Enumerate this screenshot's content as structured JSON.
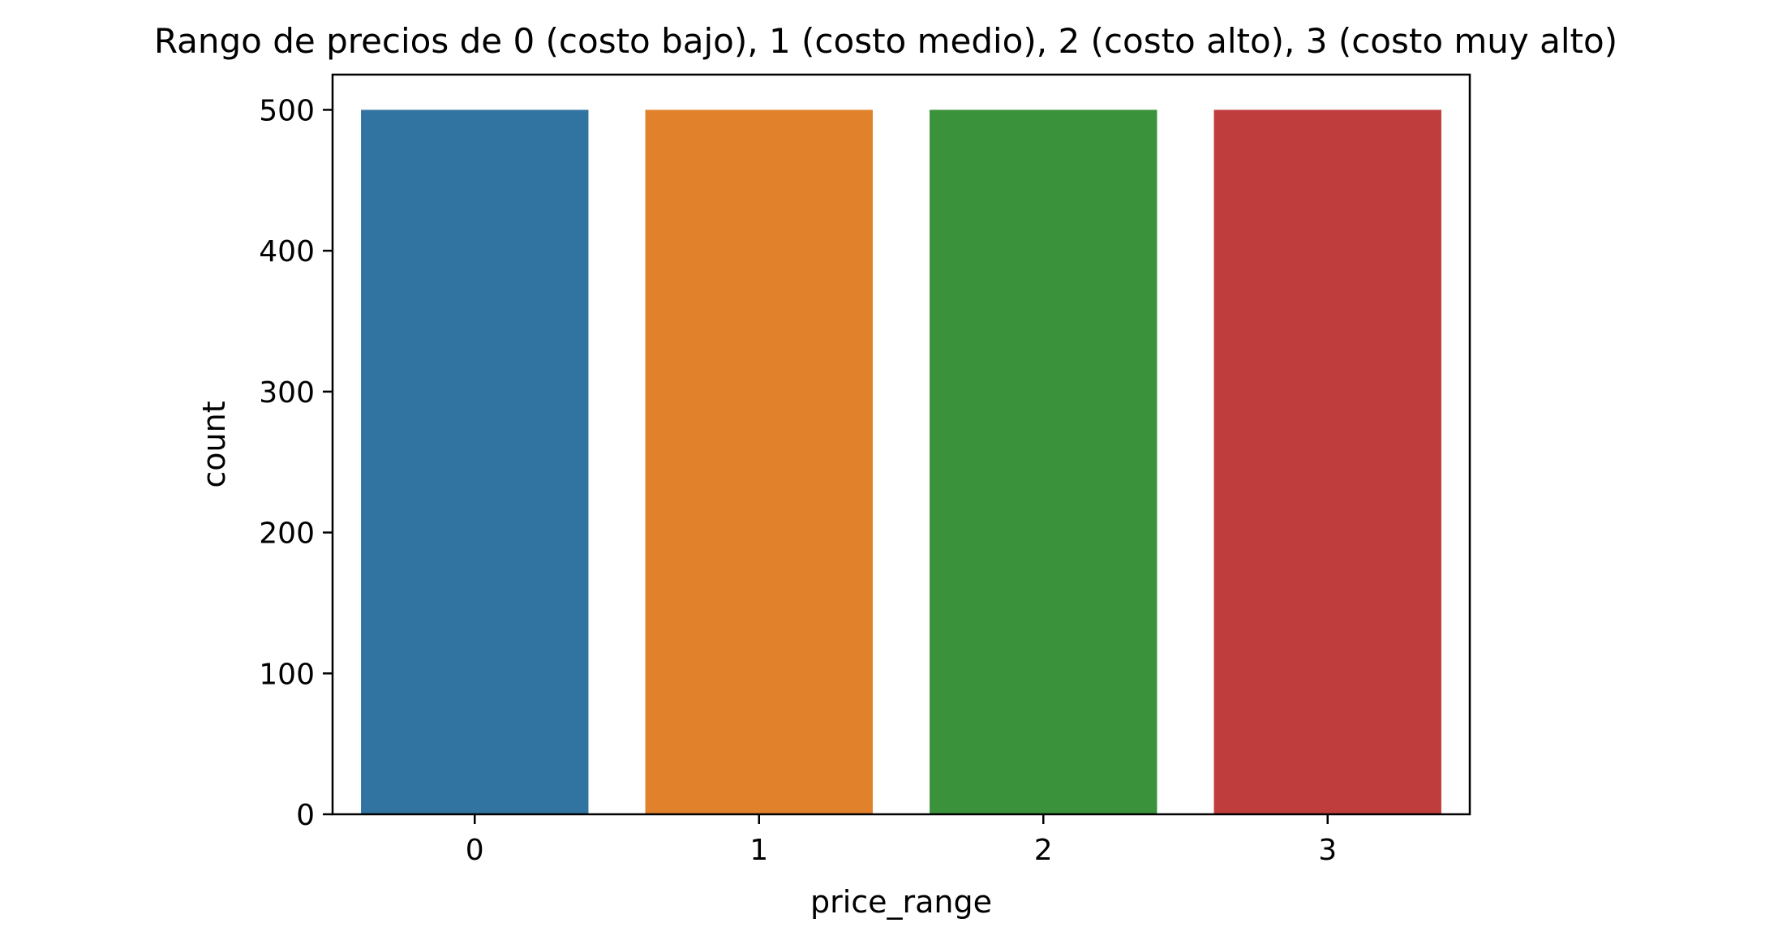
{
  "chart_data": {
    "type": "bar",
    "title": "Rango de precios de 0 (costo bajo), 1 (costo medio), 2 (costo alto), 3 (costo muy alto)",
    "xlabel": "price_range",
    "ylabel": "count",
    "categories": [
      "0",
      "1",
      "2",
      "3"
    ],
    "values": [
      500,
      500,
      500,
      500
    ],
    "colors": [
      "#3274a1",
      "#e1812c",
      "#3a923a",
      "#c03d3e"
    ],
    "ylim": [
      0,
      525
    ],
    "yticks": [
      0,
      100,
      200,
      300,
      400,
      500
    ],
    "grid": false,
    "legend": "none"
  }
}
